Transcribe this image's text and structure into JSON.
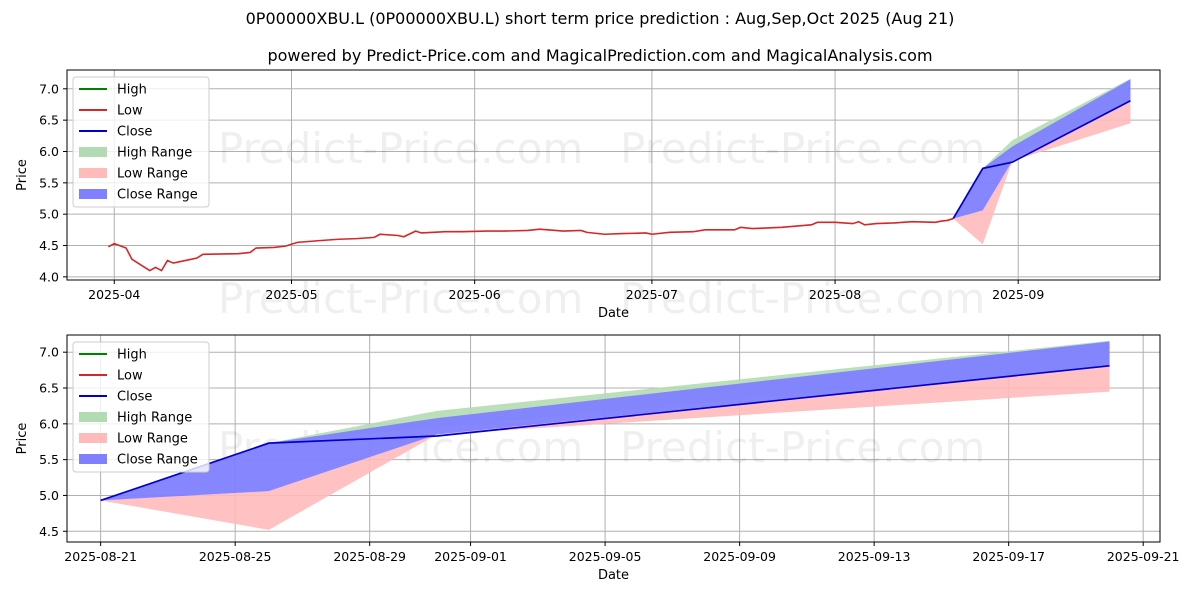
{
  "title": "0P00000XBU.L (0P00000XBU.L) short term price prediction : Aug,Sep,Oct 2025 (Aug 21)",
  "subtitle": "powered by Predict-Price.com and MagicalPrediction.com and MagicalAnalysis.com",
  "watermark": "Predict-Price.com",
  "colors": {
    "high": "#008000",
    "low": "#d62728",
    "close": "#0000cc",
    "high_range": "#b3dbb3",
    "low_range": "#ffbaba",
    "close_range": "#7f7fff"
  },
  "chart_data": [
    {
      "type": "line",
      "xlabel": "Date",
      "ylabel": "Price",
      "xlim": [
        "2025-03-24",
        "2025-09-25"
      ],
      "ylim": [
        3.95,
        7.3
      ],
      "yticks": [
        4.0,
        4.5,
        5.0,
        5.5,
        6.0,
        6.5,
        7.0
      ],
      "ytick_labels": [
        "4.0",
        "4.5",
        "5.0",
        "5.5",
        "6.0",
        "6.5",
        "7.0"
      ],
      "xticks": [
        "2025-04-01",
        "2025-05-01",
        "2025-06-01",
        "2025-07-01",
        "2025-08-01",
        "2025-09-01"
      ],
      "xtick_labels": [
        "2025-04",
        "2025-05",
        "2025-06",
        "2025-07",
        "2025-08",
        "2025-09"
      ],
      "grid": true,
      "legend": "top-left",
      "legend_entries": [
        "High",
        "Low",
        "Close",
        "High Range",
        "Low Range",
        "Close Range"
      ],
      "history_series": [
        {
          "name": "Low",
          "points": [
            [
              "2025-03-31",
              4.48
            ],
            [
              "2025-04-01",
              4.53
            ],
            [
              "2025-04-03",
              4.46
            ],
            [
              "2025-04-04",
              4.28
            ],
            [
              "2025-04-07",
              4.1
            ],
            [
              "2025-04-08",
              4.15
            ],
            [
              "2025-04-09",
              4.1
            ],
            [
              "2025-04-10",
              4.26
            ],
            [
              "2025-04-11",
              4.22
            ],
            [
              "2025-04-14",
              4.28
            ],
            [
              "2025-04-15",
              4.3
            ],
            [
              "2025-04-16",
              4.36
            ],
            [
              "2025-04-22",
              4.37
            ],
            [
              "2025-04-24",
              4.39
            ],
            [
              "2025-04-25",
              4.46
            ],
            [
              "2025-04-28",
              4.47
            ],
            [
              "2025-04-30",
              4.49
            ],
            [
              "2025-05-01",
              4.52
            ],
            [
              "2025-05-02",
              4.55
            ],
            [
              "2025-05-06",
              4.58
            ],
            [
              "2025-05-09",
              4.6
            ],
            [
              "2025-05-12",
              4.61
            ],
            [
              "2025-05-15",
              4.63
            ],
            [
              "2025-05-16",
              4.68
            ],
            [
              "2025-05-19",
              4.66
            ],
            [
              "2025-05-20",
              4.64
            ],
            [
              "2025-05-22",
              4.73
            ],
            [
              "2025-05-23",
              4.7
            ],
            [
              "2025-05-27",
              4.72
            ],
            [
              "2025-05-30",
              4.72
            ],
            [
              "2025-06-03",
              4.73
            ],
            [
              "2025-06-06",
              4.73
            ],
            [
              "2025-06-10",
              4.74
            ],
            [
              "2025-06-12",
              4.76
            ],
            [
              "2025-06-16",
              4.73
            ],
            [
              "2025-06-19",
              4.74
            ],
            [
              "2025-06-20",
              4.71
            ],
            [
              "2025-06-23",
              4.68
            ],
            [
              "2025-06-26",
              4.69
            ],
            [
              "2025-06-30",
              4.7
            ],
            [
              "2025-07-01",
              4.68
            ],
            [
              "2025-07-04",
              4.71
            ],
            [
              "2025-07-08",
              4.72
            ],
            [
              "2025-07-10",
              4.75
            ],
            [
              "2025-07-15",
              4.75
            ],
            [
              "2025-07-16",
              4.79
            ],
            [
              "2025-07-18",
              4.77
            ],
            [
              "2025-07-23",
              4.79
            ],
            [
              "2025-07-28",
              4.83
            ],
            [
              "2025-07-29",
              4.87
            ],
            [
              "2025-08-01",
              4.87
            ],
            [
              "2025-08-04",
              4.85
            ],
            [
              "2025-08-05",
              4.88
            ],
            [
              "2025-08-06",
              4.83
            ],
            [
              "2025-08-08",
              4.85
            ],
            [
              "2025-08-11",
              4.86
            ],
            [
              "2025-08-14",
              4.88
            ],
            [
              "2025-08-18",
              4.87
            ],
            [
              "2025-08-19",
              4.89
            ],
            [
              "2025-08-20",
              4.9
            ],
            [
              "2025-08-21",
              4.93
            ]
          ]
        }
      ],
      "series": [
        {
          "name": "Close",
          "x": [
            "2025-08-21",
            "2025-08-26",
            "2025-08-31",
            "2025-09-20"
          ],
          "values": [
            4.93,
            5.73,
            5.83,
            6.81
          ]
        }
      ],
      "ranges": [
        {
          "name": "High Range",
          "x": [
            "2025-08-21",
            "2025-08-26",
            "2025-08-31",
            "2025-09-20"
          ],
          "upper": [
            4.93,
            5.73,
            6.18,
            7.16
          ],
          "lower": [
            4.93,
            5.73,
            5.95,
            6.81
          ]
        },
        {
          "name": "Low Range",
          "x": [
            "2025-08-21",
            "2025-08-26",
            "2025-08-31",
            "2025-09-20"
          ],
          "upper": [
            4.93,
            5.06,
            5.85,
            6.81
          ],
          "lower": [
            4.93,
            4.52,
            5.85,
            6.45
          ]
        },
        {
          "name": "Close Range",
          "x": [
            "2025-08-21",
            "2025-08-26",
            "2025-08-31",
            "2025-09-20"
          ],
          "upper": [
            4.93,
            5.73,
            6.08,
            7.15
          ],
          "lower": [
            4.93,
            5.06,
            5.85,
            6.81
          ]
        }
      ]
    },
    {
      "type": "line",
      "xlabel": "Date",
      "ylabel": "Price",
      "xlim": [
        "2025-08-20",
        "2025-09-21.5"
      ],
      "ylim": [
        4.35,
        7.24
      ],
      "yticks": [
        4.5,
        5.0,
        5.5,
        6.0,
        6.5,
        7.0
      ],
      "ytick_labels": [
        "4.5",
        "5.0",
        "5.5",
        "6.0",
        "6.5",
        "7.0"
      ],
      "xticks": [
        "2025-08-21",
        "2025-08-25",
        "2025-08-29",
        "2025-09-01",
        "2025-09-05",
        "2025-09-09",
        "2025-09-13",
        "2025-09-17",
        "2025-09-21"
      ],
      "xtick_labels": [
        "2025-08-21",
        "2025-08-25",
        "2025-08-29",
        "2025-09-01",
        "2025-09-05",
        "2025-09-09",
        "2025-09-13",
        "2025-09-17",
        "2025-09-21"
      ],
      "grid": true,
      "legend": "top-left",
      "legend_entries": [
        "High",
        "Low",
        "Close",
        "High Range",
        "Low Range",
        "Close Range"
      ],
      "history_series": [],
      "series": [
        {
          "name": "Close",
          "x": [
            "2025-08-21",
            "2025-08-26",
            "2025-08-31",
            "2025-09-20"
          ],
          "values": [
            4.93,
            5.73,
            5.83,
            6.81
          ]
        }
      ],
      "ranges": [
        {
          "name": "High Range",
          "x": [
            "2025-08-21",
            "2025-08-26",
            "2025-08-31",
            "2025-09-20"
          ],
          "upper": [
            4.93,
            5.73,
            6.18,
            7.16
          ],
          "lower": [
            4.93,
            5.73,
            5.95,
            6.81
          ]
        },
        {
          "name": "Low Range",
          "x": [
            "2025-08-21",
            "2025-08-26",
            "2025-08-31",
            "2025-09-20"
          ],
          "upper": [
            4.93,
            5.06,
            5.85,
            6.81
          ],
          "lower": [
            4.93,
            4.52,
            5.85,
            6.45
          ]
        },
        {
          "name": "Close Range",
          "x": [
            "2025-08-21",
            "2025-08-26",
            "2025-08-31",
            "2025-09-20"
          ],
          "upper": [
            4.93,
            5.73,
            6.08,
            7.15
          ],
          "lower": [
            4.93,
            5.06,
            5.85,
            6.81
          ]
        }
      ]
    }
  ]
}
